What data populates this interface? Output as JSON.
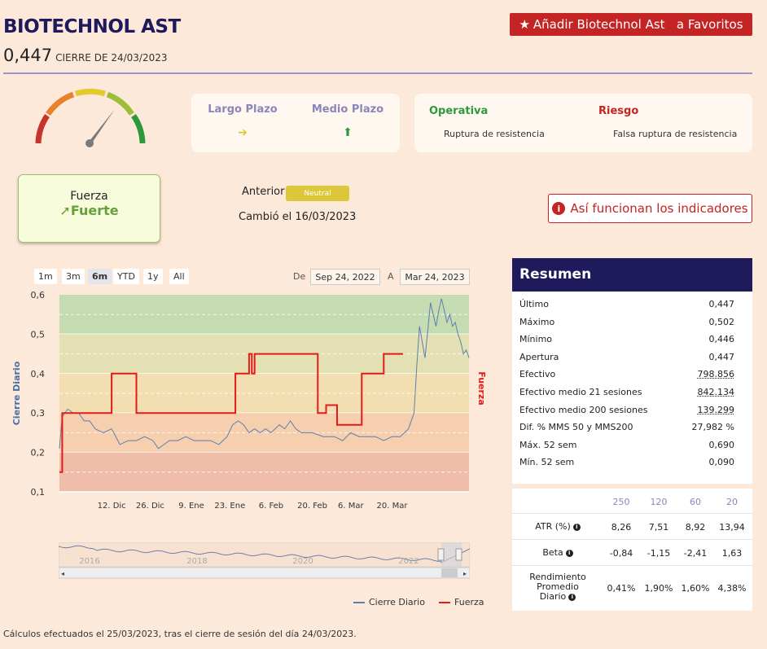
{
  "header": {
    "title": "BIOTECHNOL AST",
    "price": "0,447",
    "close_label": "CIERRE DE 24/03/2023",
    "fav_button": "Añadir Biotechnol Ast   a Favoritos"
  },
  "gauge": {
    "level_fraction": 0.72
  },
  "plazo": {
    "largo_label": "Largo Plazo",
    "largo_arrow": "➔",
    "medio_label": "Medio Plazo",
    "medio_arrow": "⬆"
  },
  "operativa": {
    "operativa_label": "Operativa",
    "operativa_text": "Ruptura de resistencia",
    "riesgo_label": "Riesgo",
    "riesgo_text": "Falsa ruptura de resistencia"
  },
  "fuerza": {
    "label": "Fuerza",
    "value": "Fuerte",
    "arrow": "➚"
  },
  "anterior": {
    "label": "Anterior",
    "badge": "Neutral",
    "changed": "Cambió el 16/03/2023"
  },
  "info_button": "Así funcionan los indicadores",
  "range_selector": {
    "buttons": [
      "1m",
      "3m",
      "6m",
      "YTD",
      "1y",
      "All"
    ],
    "active": "6m",
    "from_label": "De",
    "from_value": "Sep 24, 2022",
    "to_label": "A",
    "to_value": "Mar 24, 2023"
  },
  "chart_data": {
    "type": "line",
    "ylabel": "Cierre Diario",
    "y2label": "Fuerza",
    "ylim": [
      0.1,
      0.6
    ],
    "yticks": [
      "0,6",
      "0,5",
      "0,4",
      "0,3",
      "0,2",
      "0,1"
    ],
    "xticks": [
      "12. Dic",
      "26. Dic",
      "9. Ene",
      "23. Ene",
      "6. Feb",
      "20. Feb",
      "6. Mar",
      "20. Mar"
    ],
    "bands": [
      {
        "from": 0.5,
        "to": 0.6,
        "color": "#c5dcb2"
      },
      {
        "from": 0.4,
        "to": 0.5,
        "color": "#e3e0b4"
      },
      {
        "from": 0.3,
        "to": 0.4,
        "color": "#f3deb2"
      },
      {
        "from": 0.2,
        "to": 0.3,
        "color": "#f6cfae"
      },
      {
        "from": 0.1,
        "to": 0.2,
        "color": "#efbdaa"
      }
    ],
    "series": [
      {
        "name": "Cierre Diario",
        "color": "#5b7fb0",
        "points": [
          [
            0,
            0.21
          ],
          [
            1,
            0.29
          ],
          [
            3,
            0.31
          ],
          [
            5,
            0.3
          ],
          [
            7,
            0.3
          ],
          [
            9,
            0.28
          ],
          [
            11,
            0.28
          ],
          [
            13,
            0.26
          ],
          [
            16,
            0.25
          ],
          [
            19,
            0.26
          ],
          [
            22,
            0.22
          ],
          [
            25,
            0.23
          ],
          [
            28,
            0.23
          ],
          [
            31,
            0.24
          ],
          [
            34,
            0.23
          ],
          [
            36,
            0.21
          ],
          [
            38,
            0.22
          ],
          [
            40,
            0.23
          ],
          [
            43,
            0.23
          ],
          [
            46,
            0.24
          ],
          [
            49,
            0.23
          ],
          [
            52,
            0.23
          ],
          [
            55,
            0.23
          ],
          [
            58,
            0.22
          ],
          [
            61,
            0.24
          ],
          [
            63,
            0.27
          ],
          [
            65,
            0.28
          ],
          [
            67,
            0.27
          ],
          [
            69,
            0.25
          ],
          [
            71,
            0.26
          ],
          [
            73,
            0.25
          ],
          [
            75,
            0.26
          ],
          [
            77,
            0.25
          ],
          [
            80,
            0.27
          ],
          [
            82,
            0.26
          ],
          [
            84,
            0.28
          ],
          [
            86,
            0.26
          ],
          [
            88,
            0.25
          ],
          [
            92,
            0.25
          ],
          [
            96,
            0.24
          ],
          [
            100,
            0.24
          ],
          [
            103,
            0.23
          ],
          [
            106,
            0.25
          ],
          [
            109,
            0.24
          ],
          [
            112,
            0.24
          ],
          [
            115,
            0.24
          ],
          [
            118,
            0.23
          ],
          [
            121,
            0.24
          ],
          [
            124,
            0.24
          ],
          [
            127,
            0.26
          ],
          [
            128,
            0.28
          ],
          [
            129,
            0.3
          ],
          [
            130,
            0.42
          ],
          [
            131,
            0.52
          ],
          [
            132,
            0.48
          ],
          [
            133,
            0.44
          ],
          [
            134,
            0.51
          ],
          [
            135,
            0.58
          ],
          [
            136,
            0.55
          ],
          [
            137,
            0.52
          ],
          [
            138,
            0.56
          ],
          [
            139,
            0.59
          ],
          [
            140,
            0.56
          ],
          [
            141,
            0.53
          ],
          [
            142,
            0.55
          ],
          [
            143,
            0.52
          ],
          [
            144,
            0.53
          ],
          [
            145,
            0.5
          ],
          [
            146,
            0.48
          ],
          [
            147,
            0.45
          ],
          [
            148,
            0.46
          ],
          [
            149,
            0.44
          ]
        ]
      },
      {
        "name": "Fuerza",
        "color": "#e41b1b",
        "points": [
          [
            0,
            0.15
          ],
          [
            1,
            0.15
          ],
          [
            1,
            0.3
          ],
          [
            19,
            0.3
          ],
          [
            19,
            0.4
          ],
          [
            28,
            0.4
          ],
          [
            28,
            0.3
          ],
          [
            64,
            0.3
          ],
          [
            64,
            0.4
          ],
          [
            69,
            0.4
          ],
          [
            69,
            0.45
          ],
          [
            70,
            0.45
          ],
          [
            70,
            0.4
          ],
          [
            71,
            0.4
          ],
          [
            71,
            0.45
          ],
          [
            94,
            0.45
          ],
          [
            94,
            0.3
          ],
          [
            97,
            0.3
          ],
          [
            97,
            0.32
          ],
          [
            101,
            0.32
          ],
          [
            101,
            0.27
          ],
          [
            110,
            0.27
          ],
          [
            110,
            0.4
          ],
          [
            118,
            0.4
          ],
          [
            118,
            0.45
          ],
          [
            125,
            0.45
          ]
        ]
      }
    ],
    "x_max": 149
  },
  "navigator": {
    "years": [
      "2016",
      "2018",
      "2020",
      "2022"
    ]
  },
  "legend": {
    "item1": "Cierre Diario",
    "item2": "Fuerza"
  },
  "resumen": {
    "title": "Resumen",
    "rows": [
      {
        "label": "Último",
        "value": "0,447"
      },
      {
        "label": "Máximo",
        "value": "0,502"
      },
      {
        "label": "Mínimo",
        "value": "0,446"
      },
      {
        "label": "Apertura",
        "value": "0,447"
      },
      {
        "label": "Efectivo",
        "value": "798.856"
      },
      {
        "label": "Efectivo medio 21 sesiones",
        "value": "842.134"
      },
      {
        "label": "Efectivo medio 200 sesiones",
        "value": "139.299"
      },
      {
        "label": "Dif. % MMS 50 y MMS200",
        "value": "27,982 %"
      },
      {
        "label": "Máx. 52 sem",
        "value": "0,690"
      },
      {
        "label": "Mín. 52 sem",
        "value": "0,090"
      }
    ]
  },
  "atr_table": {
    "headers": [
      "250",
      "120",
      "60",
      "20"
    ],
    "rows": [
      {
        "label": "ATR (%)",
        "values": [
          "8,26",
          "7,51",
          "8,92",
          "13,94"
        ]
      },
      {
        "label": "Beta",
        "values": [
          "-0,84",
          "-1,15",
          "-2,41",
          "1,63"
        ]
      },
      {
        "label": "Rendimiento Promedio Diario",
        "values": [
          "0,41%",
          "1,90%",
          "1,60%",
          "4,38%"
        ]
      }
    ]
  },
  "footer": "Cálculos efectuados el 25/03/2023, tras el cierre de sesión del día 24/03/2023."
}
